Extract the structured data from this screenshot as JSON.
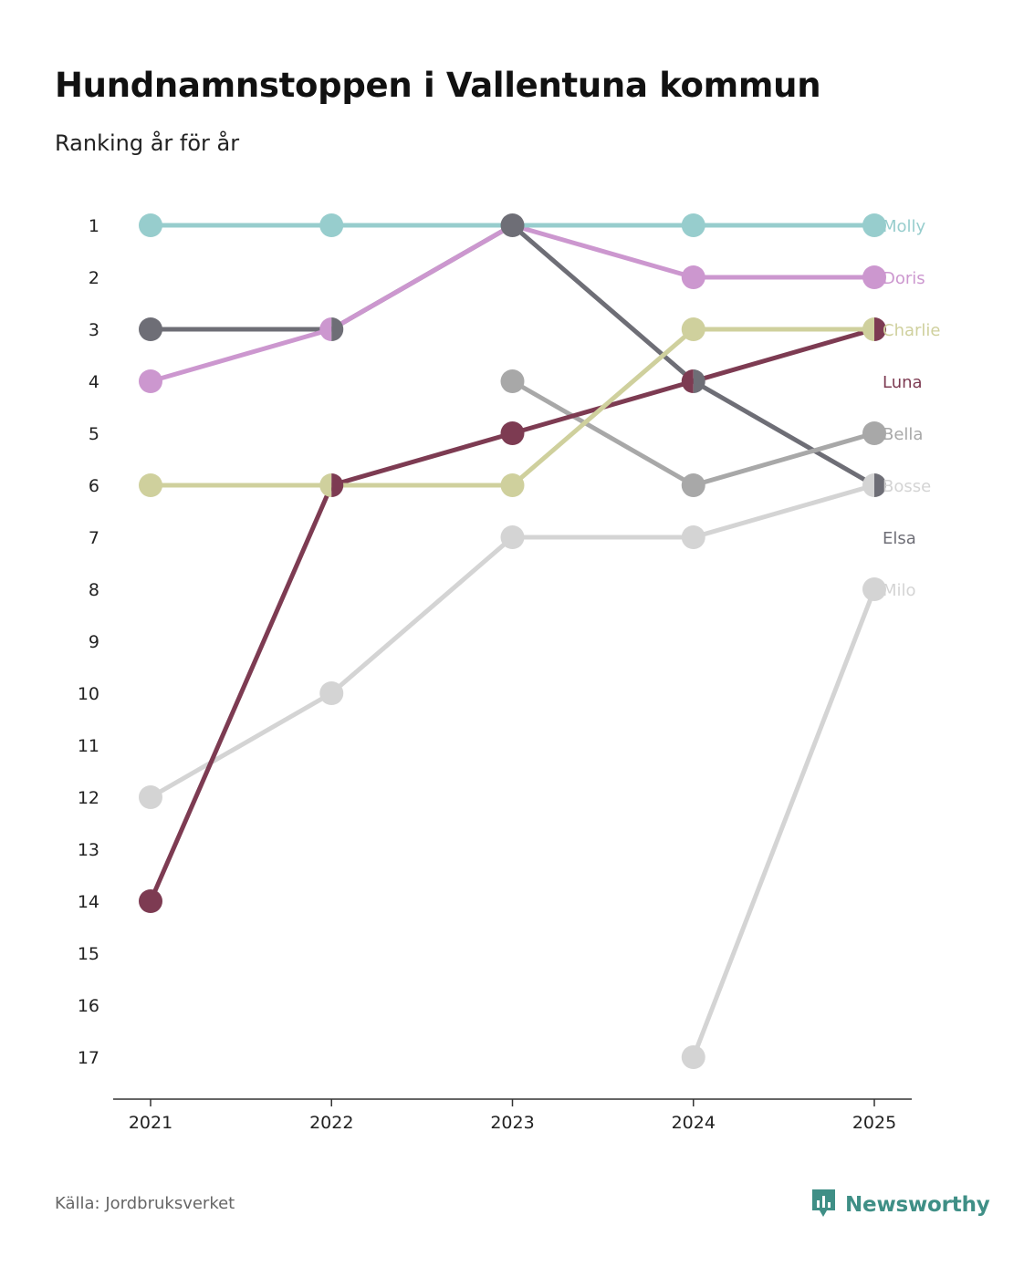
{
  "title": "Hundnamnstoppen i Vallentuna kommun",
  "subtitle": "Ranking år för år",
  "source": "Källa: Jordbruksverket",
  "brand": {
    "name": "Newsworthy",
    "logo_icon": "bar-chart-icon",
    "color": "#3f8f86"
  },
  "chart_data": {
    "type": "line",
    "title": "Hundnamnstoppen i Vallentuna kommun",
    "subtitle": "Ranking år för år",
    "x": [
      "2021",
      "2022",
      "2023",
      "2024",
      "2025"
    ],
    "xlabel": "",
    "ylabel": "",
    "y_ticks": [
      1,
      2,
      3,
      4,
      5,
      6,
      7,
      8,
      9,
      10,
      11,
      12,
      13,
      14,
      15,
      16,
      17
    ],
    "ylim": [
      1,
      17
    ],
    "y_inverted": true,
    "grid": false,
    "legend": "direct labels right",
    "series": [
      {
        "name": "Elsa",
        "color": "#6e6e76",
        "values": [
          3,
          3,
          1,
          4,
          6
        ]
      },
      {
        "name": "Milo",
        "color": "#d4d4d4",
        "values": [
          null,
          null,
          null,
          17,
          8
        ]
      },
      {
        "name": "Bosse",
        "color": "#d4d4d4",
        "values": [
          12,
          10,
          7,
          7,
          6
        ]
      },
      {
        "name": "Bella",
        "color": "#a8a8a8",
        "values": [
          null,
          null,
          4,
          6,
          5
        ]
      },
      {
        "name": "Luna",
        "color": "#7d3b52",
        "values": [
          14,
          6,
          5,
          4,
          3
        ]
      },
      {
        "name": "Charlie",
        "color": "#cfd09d",
        "values": [
          6,
          6,
          6,
          3,
          3
        ]
      },
      {
        "name": "Doris",
        "color": "#cc97cf",
        "values": [
          4,
          3,
          1,
          2,
          2
        ]
      },
      {
        "name": "Molly",
        "color": "#97cdcd",
        "values": [
          1,
          1,
          1,
          1,
          1
        ]
      }
    ],
    "label_order": [
      "Molly",
      "Doris",
      "Charlie",
      "Luna",
      "Bella",
      "Bosse",
      "Elsa",
      "Milo"
    ]
  }
}
